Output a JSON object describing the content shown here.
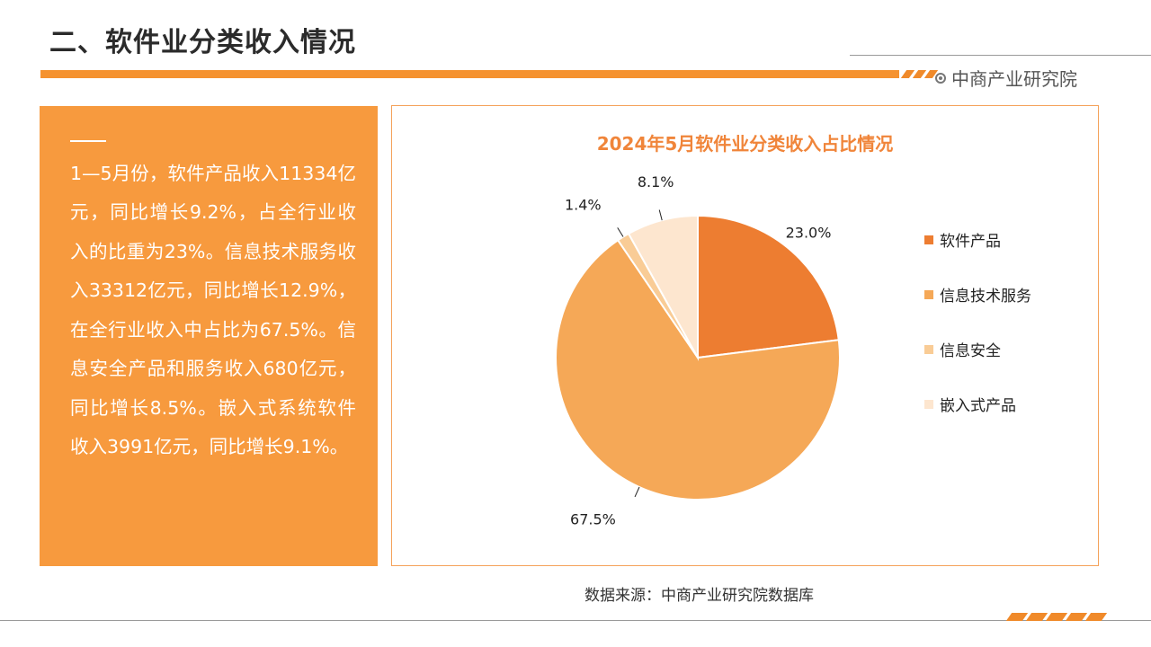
{
  "page_title": "二、软件业分类收入情况",
  "brand_name": "中商产业研究院",
  "summary_text": "1—5月份，软件产品收入11334亿元，同比增长9.2%，占全行业收入的比重为23%。信息技术服务收入33312亿元，同比增长12.9%，在全行业收入中占比为67.5%。信息安全产品和服务收入680亿元，同比增长8.5%。嵌入式系统软件收入3991亿元，同比增长9.1%。",
  "source_text": "数据来源：中商产业研究院数据库",
  "colors": {
    "accent": "#f5922f",
    "panel": "#f79a3e",
    "chart_title": "#f0853a"
  },
  "chart_data": {
    "type": "pie",
    "title": "2024年5月软件业分类收入占比情况",
    "legend_position": "right",
    "series": [
      {
        "name": "软件产品",
        "value": 23.0,
        "label": "23.0%",
        "color": "#ed7d31"
      },
      {
        "name": "信息技术服务",
        "value": 67.5,
        "label": "67.5%",
        "color": "#f5a857"
      },
      {
        "name": "信息安全",
        "value": 1.4,
        "label": "1.4%",
        "color": "#f9cc96"
      },
      {
        "name": "嵌入式产品",
        "value": 8.1,
        "label": "8.1%",
        "color": "#fde6cf"
      }
    ]
  }
}
